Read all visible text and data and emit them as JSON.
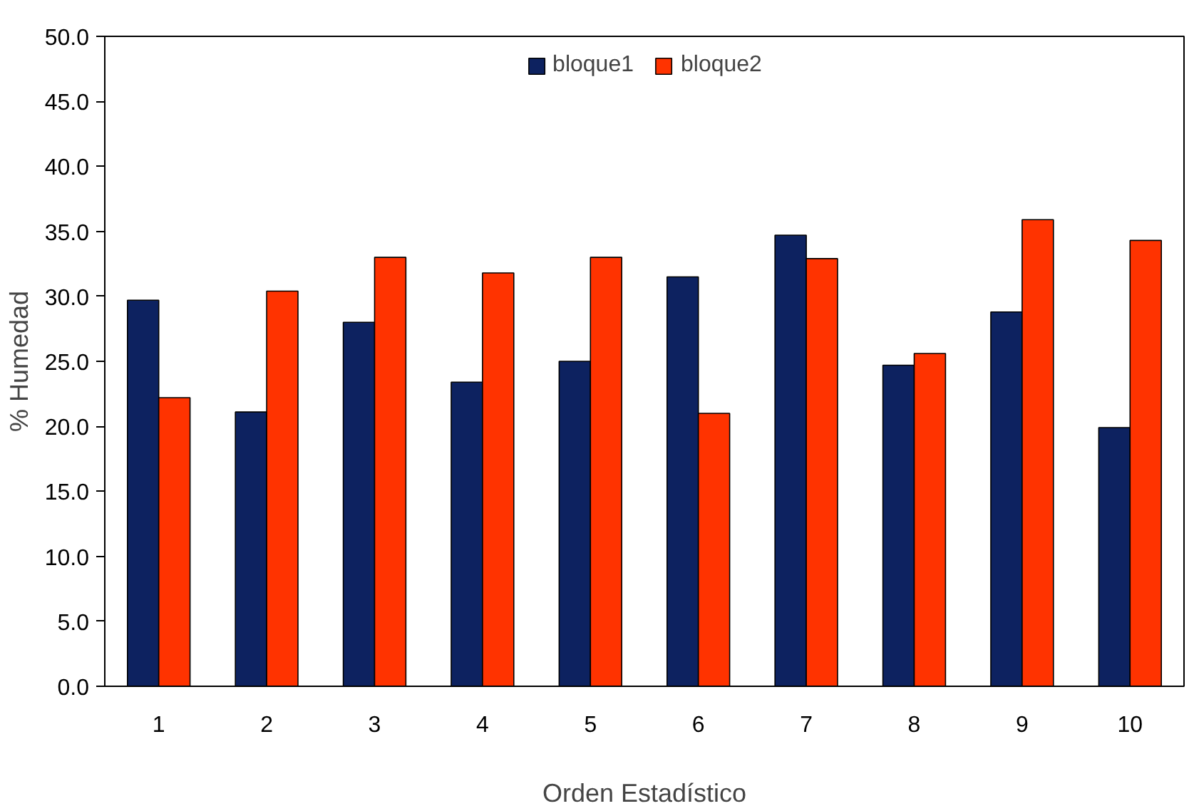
{
  "chart_data": {
    "type": "bar",
    "xlabel": "Orden Estadístico",
    "ylabel": "% Humedad",
    "categories": [
      "1",
      "2",
      "3",
      "4",
      "5",
      "6",
      "7",
      "8",
      "9",
      "10"
    ],
    "series": [
      {
        "name": "bloque1",
        "color": "#0d2260",
        "values": [
          29.7,
          21.1,
          28.0,
          23.4,
          25.0,
          31.5,
          34.7,
          24.7,
          28.8,
          19.9
        ]
      },
      {
        "name": "bloque2",
        "color": "#ff3300",
        "values": [
          22.2,
          30.4,
          33.0,
          31.8,
          33.0,
          21.0,
          32.9,
          25.6,
          35.9,
          34.3
        ]
      }
    ],
    "ylim": [
      0,
      50
    ],
    "yticks": [
      {
        "value": 0,
        "label": "0.0"
      },
      {
        "value": 5,
        "label": "5.0"
      },
      {
        "value": 10,
        "label": "10.0"
      },
      {
        "value": 15,
        "label": "15.0"
      },
      {
        "value": 20,
        "label": "20.0"
      },
      {
        "value": 25,
        "label": "25.0"
      },
      {
        "value": 30,
        "label": "30.0"
      },
      {
        "value": 35,
        "label": "35.0"
      },
      {
        "value": 40,
        "label": "40.0"
      },
      {
        "value": 45,
        "label": "45.0"
      },
      {
        "value": 50,
        "label": "50.0"
      }
    ],
    "grid": false,
    "legend": "top"
  }
}
